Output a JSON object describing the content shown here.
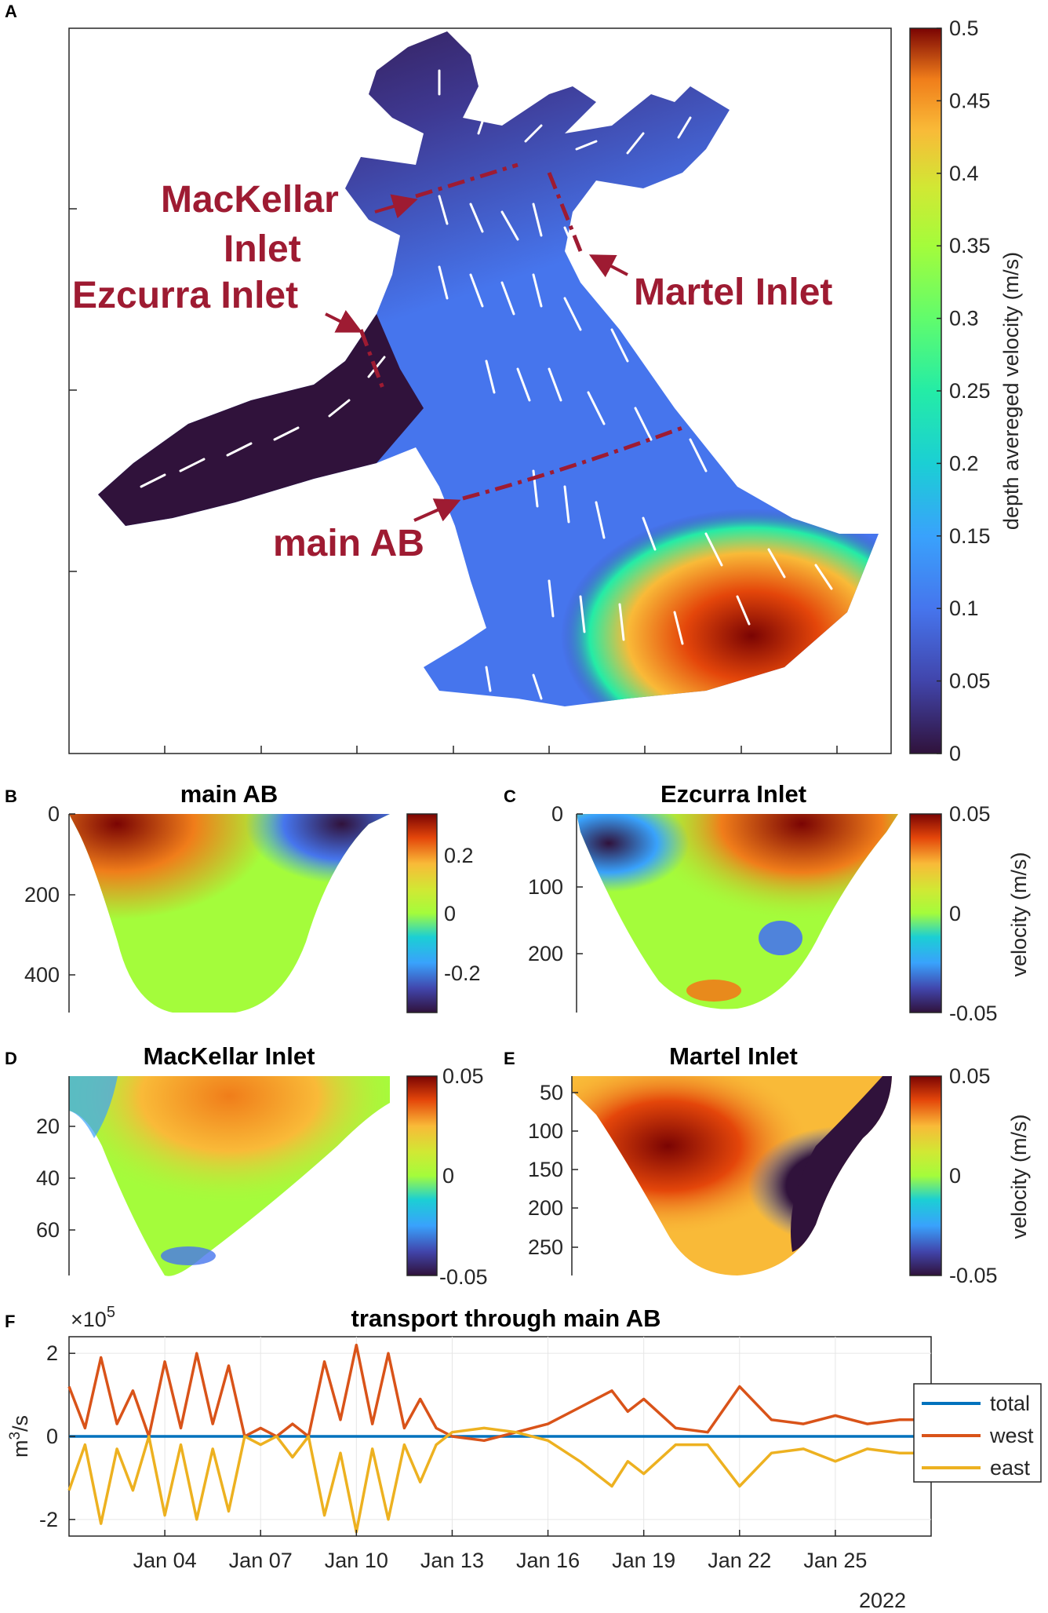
{
  "panel_letters": {
    "a": "A",
    "b": "B",
    "c": "C",
    "d": "D",
    "e": "E",
    "f": "F"
  },
  "panel_a": {
    "labels": {
      "mackellar_1": "MacKellar",
      "mackellar_2": "Inlet",
      "ezcurra": "Ezcurra Inlet",
      "martel": "Martel Inlet",
      "main_ab": "main AB"
    },
    "colorbar": {
      "label": "depth avereged velocity (m/s)",
      "ticks": [
        "0.5",
        "0.45",
        "0.4",
        "0.35",
        "0.3",
        "0.25",
        "0.2",
        "0.15",
        "0.1",
        "0.05",
        "0"
      ]
    },
    "label_color": "#9e1b32",
    "colormap": "turbo"
  },
  "panel_b": {
    "title": "main AB",
    "yticks": [
      "0",
      "200",
      "400"
    ],
    "cbar_ticks": [
      "0.2",
      "0",
      "-0.2"
    ]
  },
  "panel_c": {
    "title": "Ezcurra Inlet",
    "yticks": [
      "0",
      "100",
      "200"
    ],
    "cbar_ticks": [
      "0.05",
      "0",
      "-0.05"
    ],
    "cbar_label": "velocity (m/s)"
  },
  "panel_d": {
    "title": "MacKellar Inlet",
    "yticks": [
      "20",
      "40",
      "60"
    ],
    "cbar_ticks": [
      "0.05",
      "0",
      "-0.05"
    ]
  },
  "panel_e": {
    "title": "Martel Inlet",
    "yticks": [
      "50",
      "100",
      "150",
      "200",
      "250"
    ],
    "cbar_ticks": [
      "0.05",
      "0",
      "-0.05"
    ],
    "cbar_label": "velocity (m/s)"
  },
  "panel_f": {
    "title": "transport through main AB",
    "ylabel_base": "m",
    "ylabel_sup": "3",
    "ylabel_tail": "/s",
    "exp_base": "×10",
    "exp_sup": "5",
    "yticks": [
      "2",
      "0",
      "-2"
    ],
    "xticks": [
      "Jan 04",
      "Jan 07",
      "Jan 10",
      "Jan 13",
      "Jan 16",
      "Jan 19",
      "Jan 22",
      "Jan 25"
    ],
    "year": "2022",
    "legend": [
      "total",
      "west",
      "east"
    ]
  },
  "chart_data": [
    {
      "type": "heatmap",
      "title": "",
      "colorbar_label": "depth avereged velocity (m/s)",
      "colorbar_range": [
        0,
        0.5
      ],
      "annotations": [
        "MacKellar Inlet",
        "Ezcurra Inlet",
        "Martel Inlet",
        "main AB"
      ],
      "colormap": "turbo"
    },
    {
      "type": "heatmap",
      "title": "main AB",
      "ylim": [
        500,
        0
      ],
      "colorbar_range": [
        -0.3,
        0.3
      ]
    },
    {
      "type": "heatmap",
      "title": "Ezcurra Inlet",
      "ylim": [
        270,
        0
      ],
      "colorbar_range": [
        -0.05,
        0.05
      ],
      "colorbar_label": "velocity (m/s)"
    },
    {
      "type": "heatmap",
      "title": "MacKellar Inlet",
      "ylim": [
        77,
        0
      ],
      "colorbar_range": [
        -0.05,
        0.05
      ]
    },
    {
      "type": "heatmap",
      "title": "Martel Inlet",
      "ylim": [
        258,
        10
      ],
      "colorbar_range": [
        -0.05,
        0.05
      ],
      "colorbar_label": "velocity (m/s)"
    },
    {
      "type": "line",
      "title": "transport through main AB",
      "ylabel": "m^3/s",
      "y_scale": "×10^5",
      "xlim": [
        "2022-01-01",
        "2022-01-28"
      ],
      "ylim": [
        -2.4,
        2.4
      ],
      "grid": true,
      "legend_position": "right",
      "series": [
        {
          "name": "total",
          "color": "#0072bd",
          "x": [
            "2022-01-01",
            "2022-01-04",
            "2022-01-07",
            "2022-01-10",
            "2022-01-13",
            "2022-01-16",
            "2022-01-19",
            "2022-01-22",
            "2022-01-25",
            "2022-01-28"
          ],
          "y": [
            0,
            0,
            0,
            0,
            0,
            0,
            0,
            0,
            0,
            0
          ]
        },
        {
          "name": "west",
          "color": "#d95319",
          "x": [
            "2022-01-01",
            "2022-01-01 12:00",
            "2022-01-02",
            "2022-01-02 12:00",
            "2022-01-03",
            "2022-01-03 12:00",
            "2022-01-04",
            "2022-01-04 12:00",
            "2022-01-05",
            "2022-01-05 12:00",
            "2022-01-06",
            "2022-01-06 12:00",
            "2022-01-07",
            "2022-01-07 12:00",
            "2022-01-08",
            "2022-01-08 12:00",
            "2022-01-09",
            "2022-01-09 12:00",
            "2022-01-10",
            "2022-01-10 12:00",
            "2022-01-11",
            "2022-01-11 12:00",
            "2022-01-12",
            "2022-01-12 12:00",
            "2022-01-13",
            "2022-01-14",
            "2022-01-15",
            "2022-01-16",
            "2022-01-17",
            "2022-01-18",
            "2022-01-18 12:00",
            "2022-01-19",
            "2022-01-20",
            "2022-01-21",
            "2022-01-22",
            "2022-01-23",
            "2022-01-24",
            "2022-01-25",
            "2022-01-26",
            "2022-01-27",
            "2022-01-28"
          ],
          "y": [
            1.2,
            0.2,
            1.9,
            0.3,
            1.1,
            0.0,
            1.8,
            0.2,
            2.0,
            0.3,
            1.7,
            0.0,
            0.2,
            0.0,
            0.3,
            0.0,
            1.8,
            0.4,
            2.2,
            0.3,
            2.0,
            0.2,
            0.9,
            0.2,
            0.0,
            -0.1,
            0.1,
            0.3,
            0.7,
            1.1,
            0.6,
            0.9,
            0.2,
            0.1,
            1.2,
            0.4,
            0.3,
            0.5,
            0.3,
            0.4,
            0.4
          ]
        },
        {
          "name": "east",
          "color": "#edb120",
          "x": [
            "2022-01-01",
            "2022-01-01 12:00",
            "2022-01-02",
            "2022-01-02 12:00",
            "2022-01-03",
            "2022-01-03 12:00",
            "2022-01-04",
            "2022-01-04 12:00",
            "2022-01-05",
            "2022-01-05 12:00",
            "2022-01-06",
            "2022-01-06 12:00",
            "2022-01-07",
            "2022-01-07 12:00",
            "2022-01-08",
            "2022-01-08 12:00",
            "2022-01-09",
            "2022-01-09 12:00",
            "2022-01-10",
            "2022-01-10 12:00",
            "2022-01-11",
            "2022-01-11 12:00",
            "2022-01-12",
            "2022-01-12 12:00",
            "2022-01-13",
            "2022-01-14",
            "2022-01-15",
            "2022-01-16",
            "2022-01-17",
            "2022-01-18",
            "2022-01-18 12:00",
            "2022-01-19",
            "2022-01-20",
            "2022-01-21",
            "2022-01-22",
            "2022-01-23",
            "2022-01-24",
            "2022-01-25",
            "2022-01-26",
            "2022-01-27",
            "2022-01-28"
          ],
          "y": [
            -1.3,
            -0.2,
            -2.1,
            -0.3,
            -1.3,
            0.0,
            -1.9,
            -0.2,
            -2.0,
            -0.3,
            -1.8,
            0.0,
            -0.2,
            0.0,
            -0.5,
            0.0,
            -1.9,
            -0.4,
            -2.3,
            -0.3,
            -2.0,
            -0.2,
            -1.1,
            -0.2,
            0.1,
            0.2,
            0.1,
            -0.1,
            -0.6,
            -1.2,
            -0.6,
            -0.9,
            -0.2,
            -0.2,
            -1.2,
            -0.4,
            -0.3,
            -0.6,
            -0.3,
            -0.4,
            -0.4
          ]
        }
      ]
    }
  ]
}
